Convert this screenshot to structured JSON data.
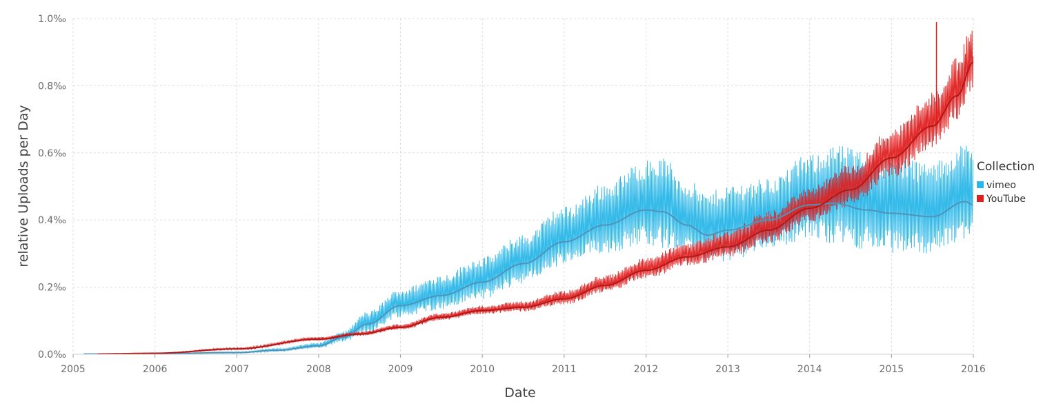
{
  "chart_data": {
    "type": "line",
    "title": "",
    "xlabel": "Date",
    "ylabel": "relative Uploads per Day",
    "xlim": [
      2005,
      2016
    ],
    "ylim": [
      0,
      1.0
    ],
    "x_ticks": [
      2005,
      2006,
      2007,
      2008,
      2009,
      2010,
      2011,
      2012,
      2013,
      2014,
      2015,
      2016
    ],
    "x_tick_labels": [
      "2005",
      "2006",
      "2007",
      "2008",
      "2009",
      "2010",
      "2011",
      "2012",
      "2013",
      "2014",
      "2015",
      "2016"
    ],
    "y_ticks": [
      0,
      0.2,
      0.4,
      0.6,
      0.8,
      1.0
    ],
    "y_tick_labels": [
      "0.0‰",
      "0.2‰",
      "0.4‰",
      "0.6‰",
      "0.8‰",
      "1.0‰"
    ],
    "grid": true,
    "legend": {
      "title": "Collection",
      "position": "right"
    },
    "series": [
      {
        "name": "vimeo",
        "color": "#29b6e8",
        "trend_color": "#4f94b8",
        "x": [
          2005.13,
          2006.0,
          2007.0,
          2007.5,
          2008.0,
          2008.3,
          2008.6,
          2009.0,
          2009.5,
          2010.0,
          2010.5,
          2011.0,
          2011.5,
          2012.0,
          2012.2,
          2012.5,
          2012.75,
          2013.0,
          2013.5,
          2014.0,
          2014.3,
          2014.7,
          2015.0,
          2015.5,
          2015.9,
          2016.0
        ],
        "trend": [
          0.001,
          0.002,
          0.005,
          0.012,
          0.025,
          0.05,
          0.09,
          0.145,
          0.175,
          0.215,
          0.27,
          0.335,
          0.385,
          0.43,
          0.425,
          0.385,
          0.355,
          0.37,
          0.4,
          0.445,
          0.45,
          0.43,
          0.42,
          0.41,
          0.455,
          0.445
        ],
        "spread": [
          0.0,
          0.0005,
          0.002,
          0.004,
          0.008,
          0.015,
          0.03,
          0.04,
          0.05,
          0.06,
          0.07,
          0.085,
          0.1,
          0.12,
          0.13,
          0.11,
          0.1,
          0.11,
          0.1,
          0.12,
          0.14,
          0.14,
          0.14,
          0.13,
          0.14,
          0.13
        ]
      },
      {
        "name": "YouTube",
        "color": "#e01f1f",
        "trend_color": "#b01818",
        "x": [
          2005.3,
          2006.0,
          2007.0,
          2008.0,
          2008.5,
          2009.0,
          2009.5,
          2010.0,
          2010.5,
          2011.0,
          2011.5,
          2012.0,
          2012.5,
          2013.0,
          2013.5,
          2014.0,
          2014.5,
          2015.0,
          2015.5,
          2015.8,
          2016.0
        ],
        "trend": [
          0.001,
          0.003,
          0.016,
          0.045,
          0.06,
          0.08,
          0.11,
          0.13,
          0.14,
          0.165,
          0.205,
          0.25,
          0.29,
          0.32,
          0.37,
          0.435,
          0.49,
          0.585,
          0.68,
          0.77,
          0.87
        ],
        "spread": [
          0.0,
          0.001,
          0.003,
          0.005,
          0.006,
          0.008,
          0.01,
          0.012,
          0.015,
          0.02,
          0.025,
          0.03,
          0.035,
          0.04,
          0.045,
          0.05,
          0.06,
          0.07,
          0.08,
          0.09,
          0.1
        ],
        "spike": {
          "x": 2015.55,
          "y": 0.99
        }
      }
    ]
  }
}
